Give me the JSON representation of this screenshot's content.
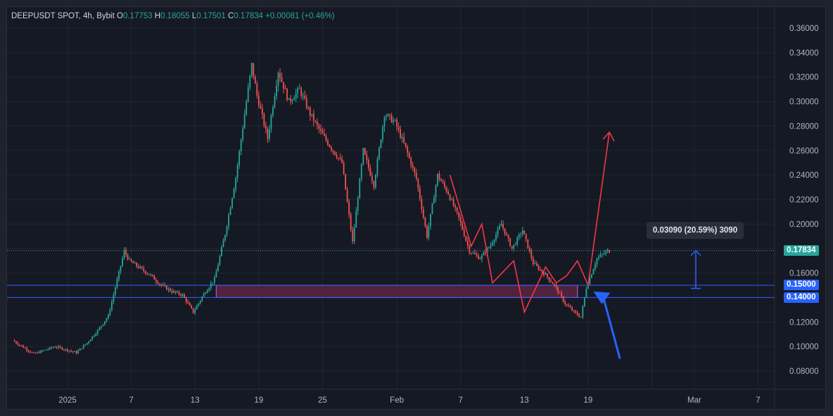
{
  "header": {
    "symbol": "DEEPUSDT SPOT, 4h, Bybit",
    "o_label": "O",
    "o_value": "0.17753",
    "h_label": "H",
    "h_value": "0.18055",
    "l_label": "L",
    "l_value": "0.17501",
    "c_label": "C",
    "c_value": "0.17834",
    "change": "+0.00081 (+0.46%)"
  },
  "colors": {
    "up": "#26a69a",
    "down": "#ef5350",
    "last_price": "#26a69a",
    "level_line": "#2962ff",
    "zone_fill": "#5b2540",
    "zone_border": "#b455c8",
    "drawing_red": "#f23645",
    "arrow_blue": "#2962ff",
    "measure_blue": "#2962ff"
  },
  "tags": {
    "last_price": "0.17834",
    "level_upper": "0.15000",
    "level_lower": "0.14000"
  },
  "measure_label": "0.03090 (20.59%) 3090",
  "chart_data": {
    "type": "candlestick",
    "y_ticks": [
      "0.36000",
      "0.34000",
      "0.32000",
      "0.30000",
      "0.28000",
      "0.26000",
      "0.24000",
      "0.22000",
      "0.20000",
      "0.18000",
      "0.16000",
      "0.12000",
      "0.10000",
      "0.08000"
    ],
    "x_ticks": [
      "2025",
      "7",
      "13",
      "19",
      "25",
      "Feb",
      "7",
      "13",
      "19",
      "Mar",
      "7"
    ],
    "ylim": [
      0.07,
      0.37
    ],
    "last_price": 0.17834,
    "levels": [
      0.15,
      0.14
    ],
    "zone": {
      "from": "2025-01-15",
      "to": "2025-02-18",
      "low": 0.14,
      "high": 0.15
    },
    "measure": {
      "from": 0.14744,
      "to": 0.17834,
      "delta": "0.03090",
      "pct": "20.59%"
    },
    "price_path": [
      [
        "2024-12-27",
        0.105
      ],
      [
        "2024-12-29",
        0.094
      ],
      [
        "2024-12-31",
        0.1
      ],
      [
        "2025-01-02",
        0.095
      ],
      [
        "2025-01-03",
        0.103
      ],
      [
        "2025-01-04",
        0.113
      ],
      [
        "2025-01-05",
        0.125
      ],
      [
        "2025-01-06",
        0.16
      ],
      [
        "2025-01-06 12:00",
        0.178
      ],
      [
        "2025-01-07",
        0.17
      ],
      [
        "2025-01-08",
        0.164
      ],
      [
        "2025-01-09",
        0.158
      ],
      [
        "2025-01-10",
        0.15
      ],
      [
        "2025-01-11",
        0.145
      ],
      [
        "2025-01-12",
        0.142
      ],
      [
        "2025-01-13",
        0.128
      ],
      [
        "2025-01-14",
        0.143
      ],
      [
        "2025-01-15",
        0.155
      ],
      [
        "2025-01-16",
        0.192
      ],
      [
        "2025-01-17",
        0.238
      ],
      [
        "2025-01-18",
        0.3
      ],
      [
        "2025-01-18 12:00",
        0.33
      ],
      [
        "2025-01-19",
        0.305
      ],
      [
        "2025-01-20",
        0.27
      ],
      [
        "2025-01-21",
        0.325
      ],
      [
        "2025-01-22",
        0.3
      ],
      [
        "2025-01-23",
        0.31
      ],
      [
        "2025-01-24",
        0.29
      ],
      [
        "2025-01-25",
        0.275
      ],
      [
        "2025-01-26",
        0.262
      ],
      [
        "2025-01-27",
        0.25
      ],
      [
        "2025-01-28",
        0.185
      ],
      [
        "2025-01-29",
        0.26
      ],
      [
        "2025-01-30",
        0.232
      ],
      [
        "2025-01-31",
        0.29
      ],
      [
        "2025-02-01",
        0.283
      ],
      [
        "2025-02-02",
        0.262
      ],
      [
        "2025-02-03",
        0.237
      ],
      [
        "2025-02-04",
        0.19
      ],
      [
        "2025-02-05",
        0.24
      ],
      [
        "2025-02-06",
        0.225
      ],
      [
        "2025-02-07",
        0.205
      ],
      [
        "2025-02-08",
        0.178
      ],
      [
        "2025-02-09",
        0.172
      ],
      [
        "2025-02-10",
        0.183
      ],
      [
        "2025-02-11",
        0.2
      ],
      [
        "2025-02-12",
        0.18
      ],
      [
        "2025-02-13",
        0.195
      ],
      [
        "2025-02-14",
        0.168
      ],
      [
        "2025-02-15",
        0.16
      ],
      [
        "2025-02-16",
        0.15
      ],
      [
        "2025-02-17",
        0.135
      ],
      [
        "2025-02-18",
        0.127
      ],
      [
        "2025-02-18 12:00",
        0.124
      ],
      [
        "2025-02-19",
        0.148
      ],
      [
        "2025-02-20",
        0.172
      ],
      [
        "2025-02-21",
        0.178
      ]
    ],
    "drawings": {
      "zigzag": [
        [
          "2025-02-06",
          0.24
        ],
        [
          "2025-02-08",
          0.182
        ],
        [
          "2025-02-09",
          0.2
        ],
        [
          "2025-02-10",
          0.152
        ],
        [
          "2025-02-12",
          0.17
        ],
        [
          "2025-02-13",
          0.128
        ],
        [
          "2025-02-15",
          0.165
        ],
        [
          "2025-02-16",
          0.152
        ],
        [
          "2025-02-17",
          0.158
        ],
        [
          "2025-02-18",
          0.17
        ],
        [
          "2025-02-19",
          0.15
        ],
        [
          "2025-02-21",
          0.275
        ]
      ],
      "pointer_arrow": {
        "from": [
          "2025-02-22",
          0.09
        ],
        "to": [
          "2025-02-19 12:00",
          0.145
        ]
      }
    }
  }
}
